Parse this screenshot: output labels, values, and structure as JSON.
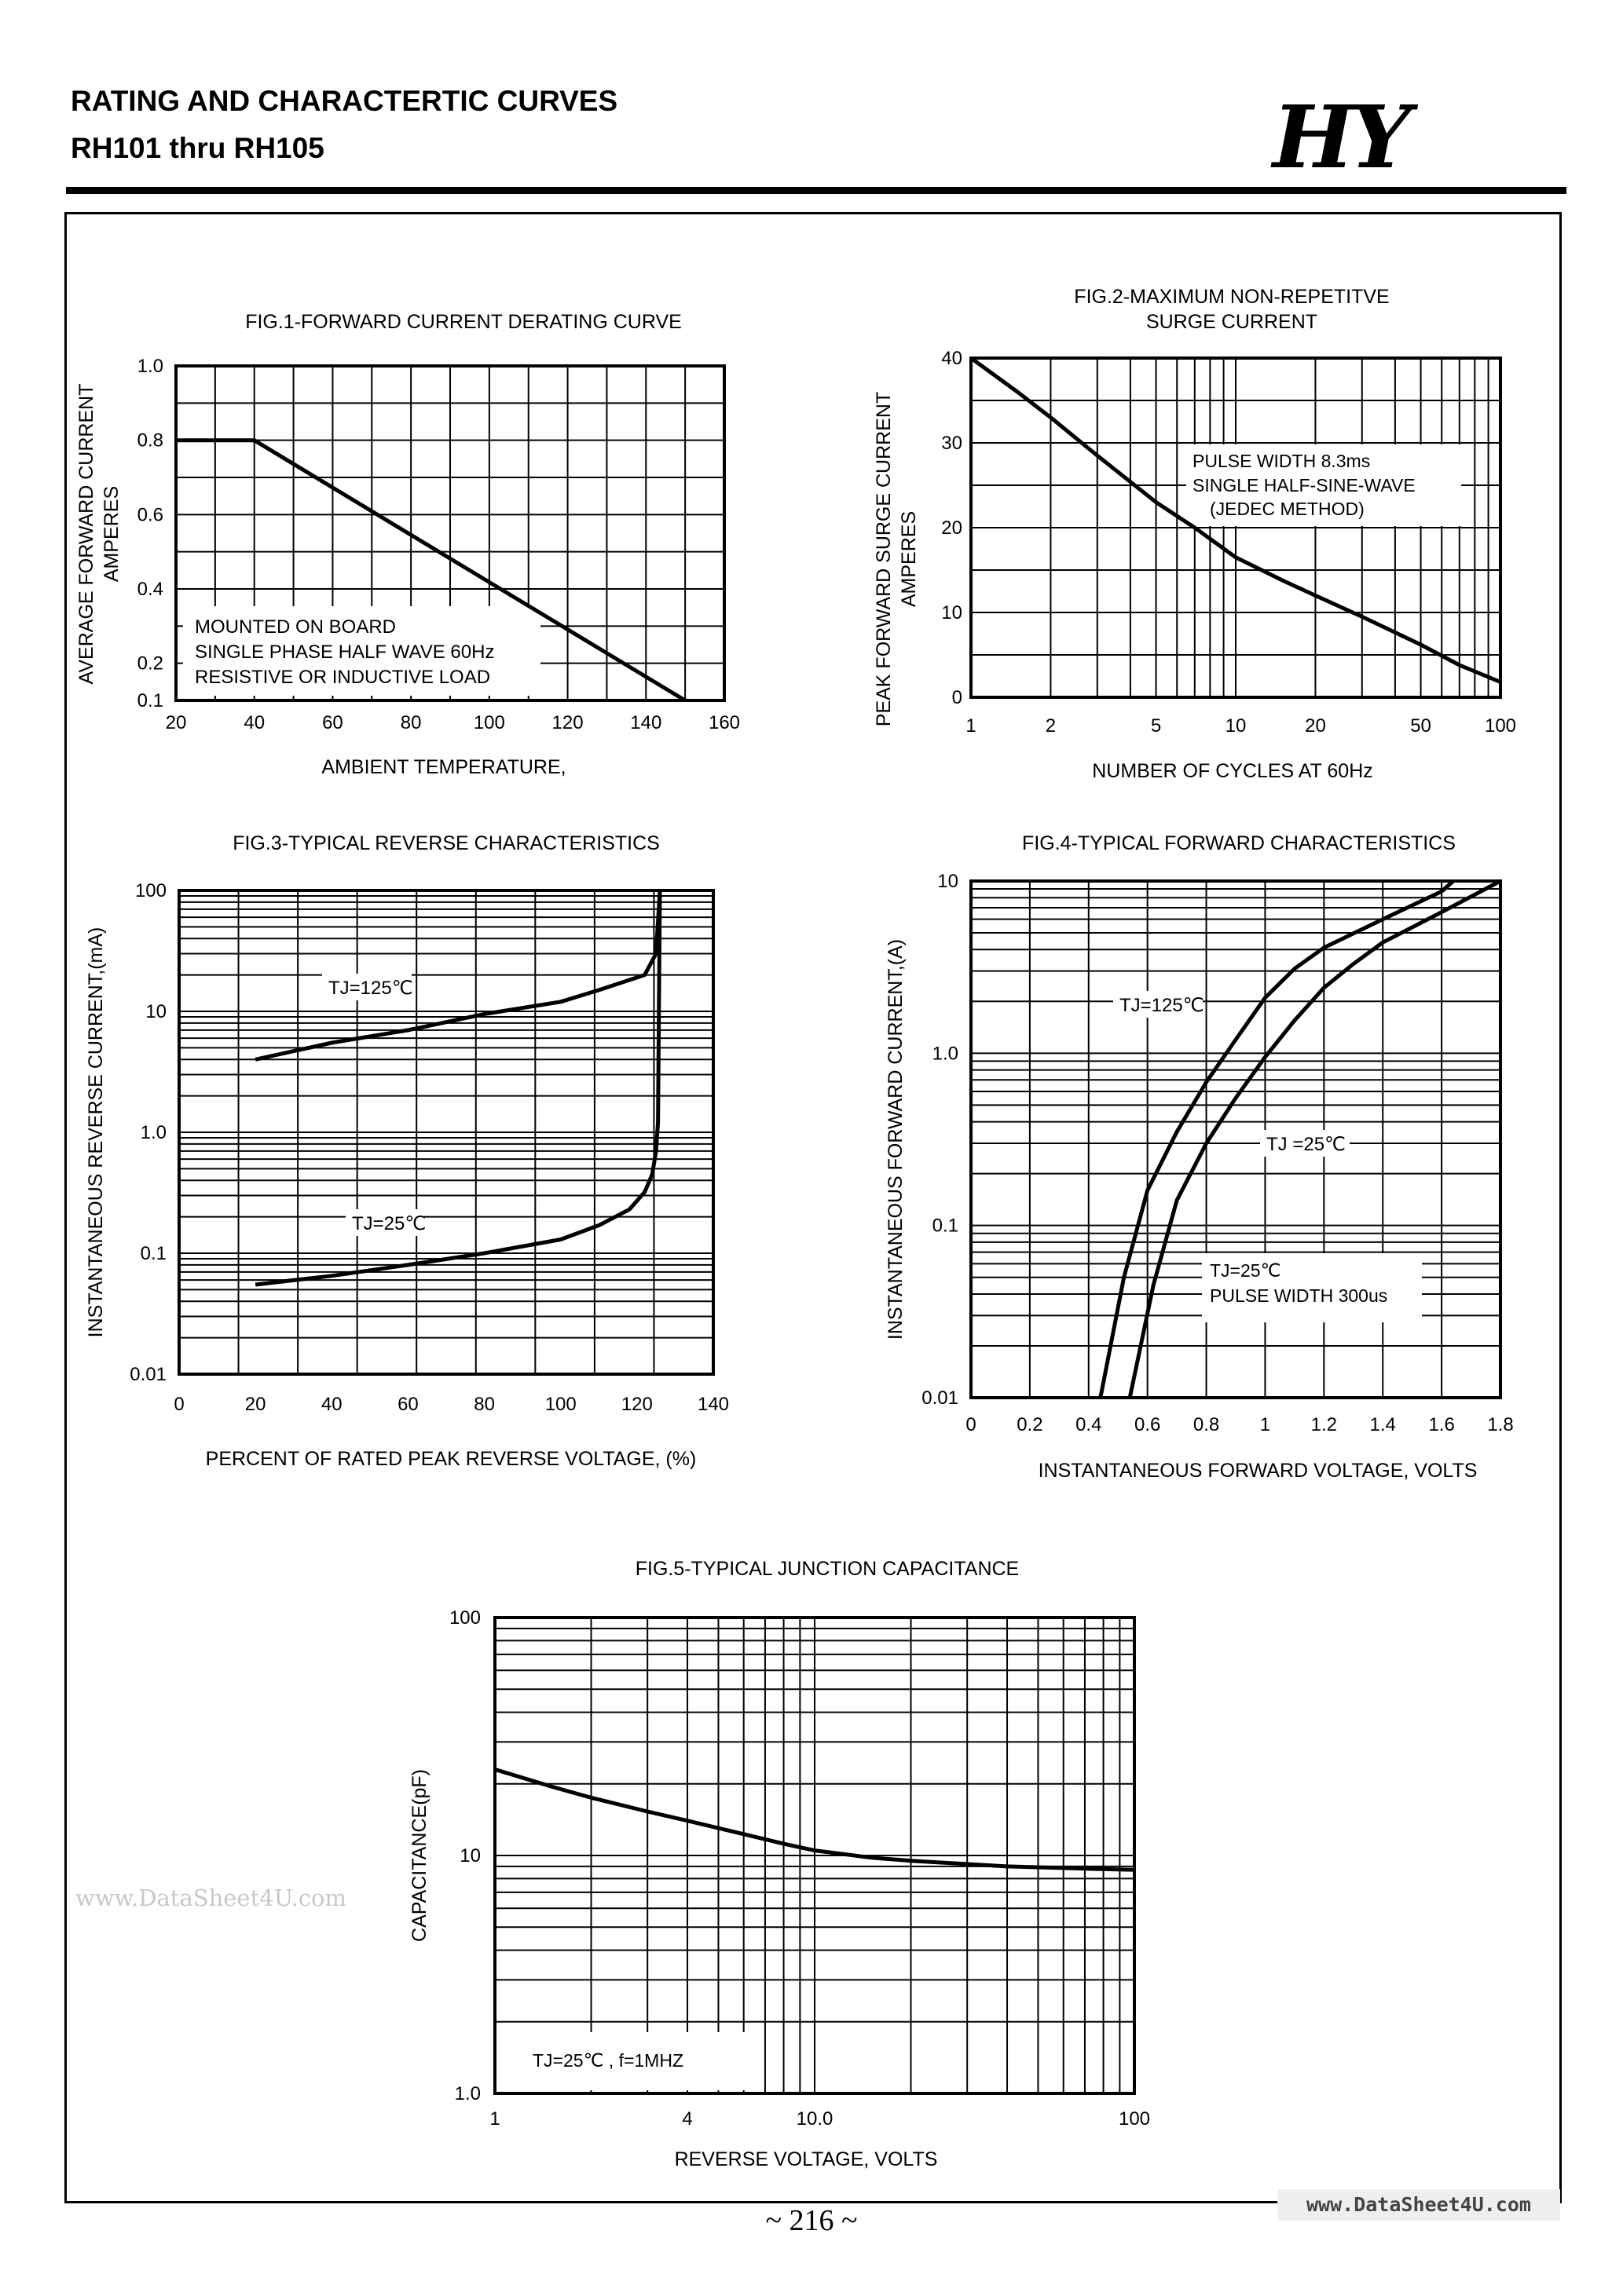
{
  "header": {
    "title": "RATING AND CHARACTERTIC CURVES",
    "subtitle": "RH101 thru RH105",
    "logo": "HY"
  },
  "footer": {
    "page": "~ 216 ~",
    "watermark_left": "www.DataSheet4U.com",
    "watermark_right": "www.DataSheet4U.com"
  },
  "chart_data": [
    {
      "id": "fig1",
      "type": "line",
      "title": "FIG.1-FORWARD CURRENT DERATING CURVE",
      "xlabel": "AMBIENT TEMPERATURE,",
      "ylabel": [
        "AVERAGE FORWARD CURRENT",
        "AMPERES"
      ],
      "x_scale": "linear",
      "y_scale": "linear",
      "xlim": [
        20,
        160
      ],
      "ylim": [
        0.1,
        1.0
      ],
      "x_ticks": [
        20,
        40,
        60,
        80,
        100,
        120,
        140,
        160
      ],
      "y_ticks": [
        0.1,
        0.2,
        0.4,
        0.6,
        0.8,
        1.0
      ],
      "grid": true,
      "series": [
        {
          "x": [
            20,
            40,
            150
          ],
          "y": [
            0.8,
            0.8,
            0.1
          ]
        }
      ],
      "annotation": [
        "MOUNTED ON BOARD",
        "SINGLE PHASE HALF WAVE 60Hz",
        "RESISTIVE OR INDUCTIVE LOAD"
      ]
    },
    {
      "id": "fig2",
      "type": "line",
      "title": [
        "FIG.2-MAXIMUM NON-REPETITVE",
        "SURGE CURRENT"
      ],
      "xlabel": "NUMBER OF CYCLES AT 60Hz",
      "ylabel": [
        "PEAK FORWARD SURGE CURRENT",
        "AMPERES"
      ],
      "x_scale": "log",
      "y_scale": "linear",
      "xlim": [
        1,
        100
      ],
      "ylim": [
        0,
        40
      ],
      "x_ticks": [
        1,
        2,
        5,
        10,
        20,
        50,
        100
      ],
      "y_ticks": [
        0,
        10,
        20,
        30,
        40
      ],
      "grid": true,
      "series": [
        {
          "x": [
            1,
            1.5,
            2,
            3,
            5,
            7,
            10,
            15,
            20,
            30,
            50,
            70,
            100
          ],
          "y": [
            40,
            36,
            33,
            28.5,
            23,
            20,
            16.5,
            13.8,
            12,
            9.5,
            6.2,
            3.8,
            1.8
          ]
        }
      ],
      "annotation": [
        "PULSE WIDTH 8.3ms",
        "SINGLE HALF-SINE-WAVE",
        "(JEDEC METHOD)"
      ]
    },
    {
      "id": "fig3",
      "type": "line",
      "title": "FIG.3-TYPICAL REVERSE CHARACTERISTICS",
      "xlabel": "PERCENT OF RATED PEAK REVERSE VOLTAGE,  (%)",
      "ylabel": [
        "INSTANTANEOUS REVERSE CURRENT,(mA)"
      ],
      "x_scale": "linear",
      "y_scale": "log",
      "xlim": [
        0,
        140
      ],
      "ylim": [
        0.01,
        100
      ],
      "x_ticks": [
        0,
        20,
        40,
        60,
        80,
        100,
        120,
        140
      ],
      "y_ticks": [
        0.01,
        0.1,
        1.0,
        10,
        100
      ],
      "y_tick_labels": [
        "0.01",
        "0.1",
        "1.0",
        "10",
        "100"
      ],
      "grid": true,
      "series": [
        {
          "name": "TJ=125℃",
          "x": [
            20,
            40,
            60,
            80,
            100,
            110,
            122,
            125,
            126
          ],
          "y": [
            4,
            5.5,
            7,
            9.5,
            12,
            15,
            20,
            30,
            100
          ]
        },
        {
          "name": "TJ=25℃",
          "x": [
            20,
            40,
            60,
            80,
            100,
            110,
            118,
            122,
            124,
            125,
            125.5,
            126
          ],
          "y": [
            0.055,
            0.065,
            0.08,
            0.1,
            0.13,
            0.17,
            0.23,
            0.32,
            0.45,
            0.7,
            1.2,
            100
          ]
        }
      ]
    },
    {
      "id": "fig4",
      "type": "line",
      "title": "FIG.4-TYPICAL FORWARD CHARACTERISTICS",
      "xlabel": "INSTANTANEOUS FORWARD VOLTAGE,  VOLTS",
      "ylabel": [
        "INSTANTANEOUS FORWARD CURRENT,(A)"
      ],
      "x_scale": "linear",
      "y_scale": "log",
      "xlim": [
        0,
        1.8
      ],
      "ylim": [
        0.01,
        10
      ],
      "x_ticks": [
        0,
        0.2,
        0.4,
        0.6,
        0.8,
        1.0,
        1.2,
        1.4,
        1.6,
        1.8
      ],
      "y_ticks": [
        0.01,
        0.1,
        1.0,
        10
      ],
      "y_tick_labels": [
        "0.01",
        "0.1",
        "1.0",
        "10"
      ],
      "grid": true,
      "series": [
        {
          "name": "TJ=125℃",
          "x": [
            0.44,
            0.52,
            0.6,
            0.7,
            0.8,
            0.9,
            1.0,
            1.1,
            1.2,
            1.4,
            1.6,
            1.64
          ],
          "y": [
            0.01,
            0.05,
            0.16,
            0.35,
            0.68,
            1.2,
            2.1,
            3.1,
            4.1,
            6.0,
            8.7,
            10
          ]
        },
        {
          "name": "TJ =25℃",
          "x": [
            0.54,
            0.62,
            0.7,
            0.8,
            0.9,
            1.0,
            1.1,
            1.2,
            1.3,
            1.4,
            1.6,
            1.8
          ],
          "y": [
            0.01,
            0.045,
            0.14,
            0.3,
            0.55,
            0.95,
            1.55,
            2.4,
            3.3,
            4.4,
            6.6,
            10
          ]
        }
      ],
      "annotation": [
        "TJ=25℃",
        "PULSE WIDTH 300us"
      ]
    },
    {
      "id": "fig5",
      "type": "line",
      "title": "FIG.5-TYPICAL JUNCTION CAPACITANCE",
      "xlabel": "REVERSE VOLTAGE,  VOLTS",
      "ylabel": [
        "CAPACITANCE(pF)"
      ],
      "x_scale": "log",
      "y_scale": "log",
      "xlim": [
        1,
        100
      ],
      "ylim": [
        1,
        100
      ],
      "x_ticks": [
        1,
        4,
        10,
        100
      ],
      "x_tick_labels": [
        "1",
        "4",
        "10.0",
        "100"
      ],
      "y_ticks": [
        1,
        10,
        100
      ],
      "y_tick_labels": [
        "1.0",
        "10",
        "100"
      ],
      "grid": true,
      "series": [
        {
          "x": [
            1,
            1.5,
            2,
            3,
            4,
            6,
            8,
            10,
            15,
            20,
            40,
            70,
            100
          ],
          "y": [
            23,
            19.5,
            17.5,
            15.3,
            14,
            12.3,
            11.2,
            10.5,
            9.8,
            9.5,
            9.0,
            8.8,
            8.7
          ]
        }
      ],
      "annotation": [
        "TJ=25℃ , f=1MHZ"
      ]
    }
  ]
}
